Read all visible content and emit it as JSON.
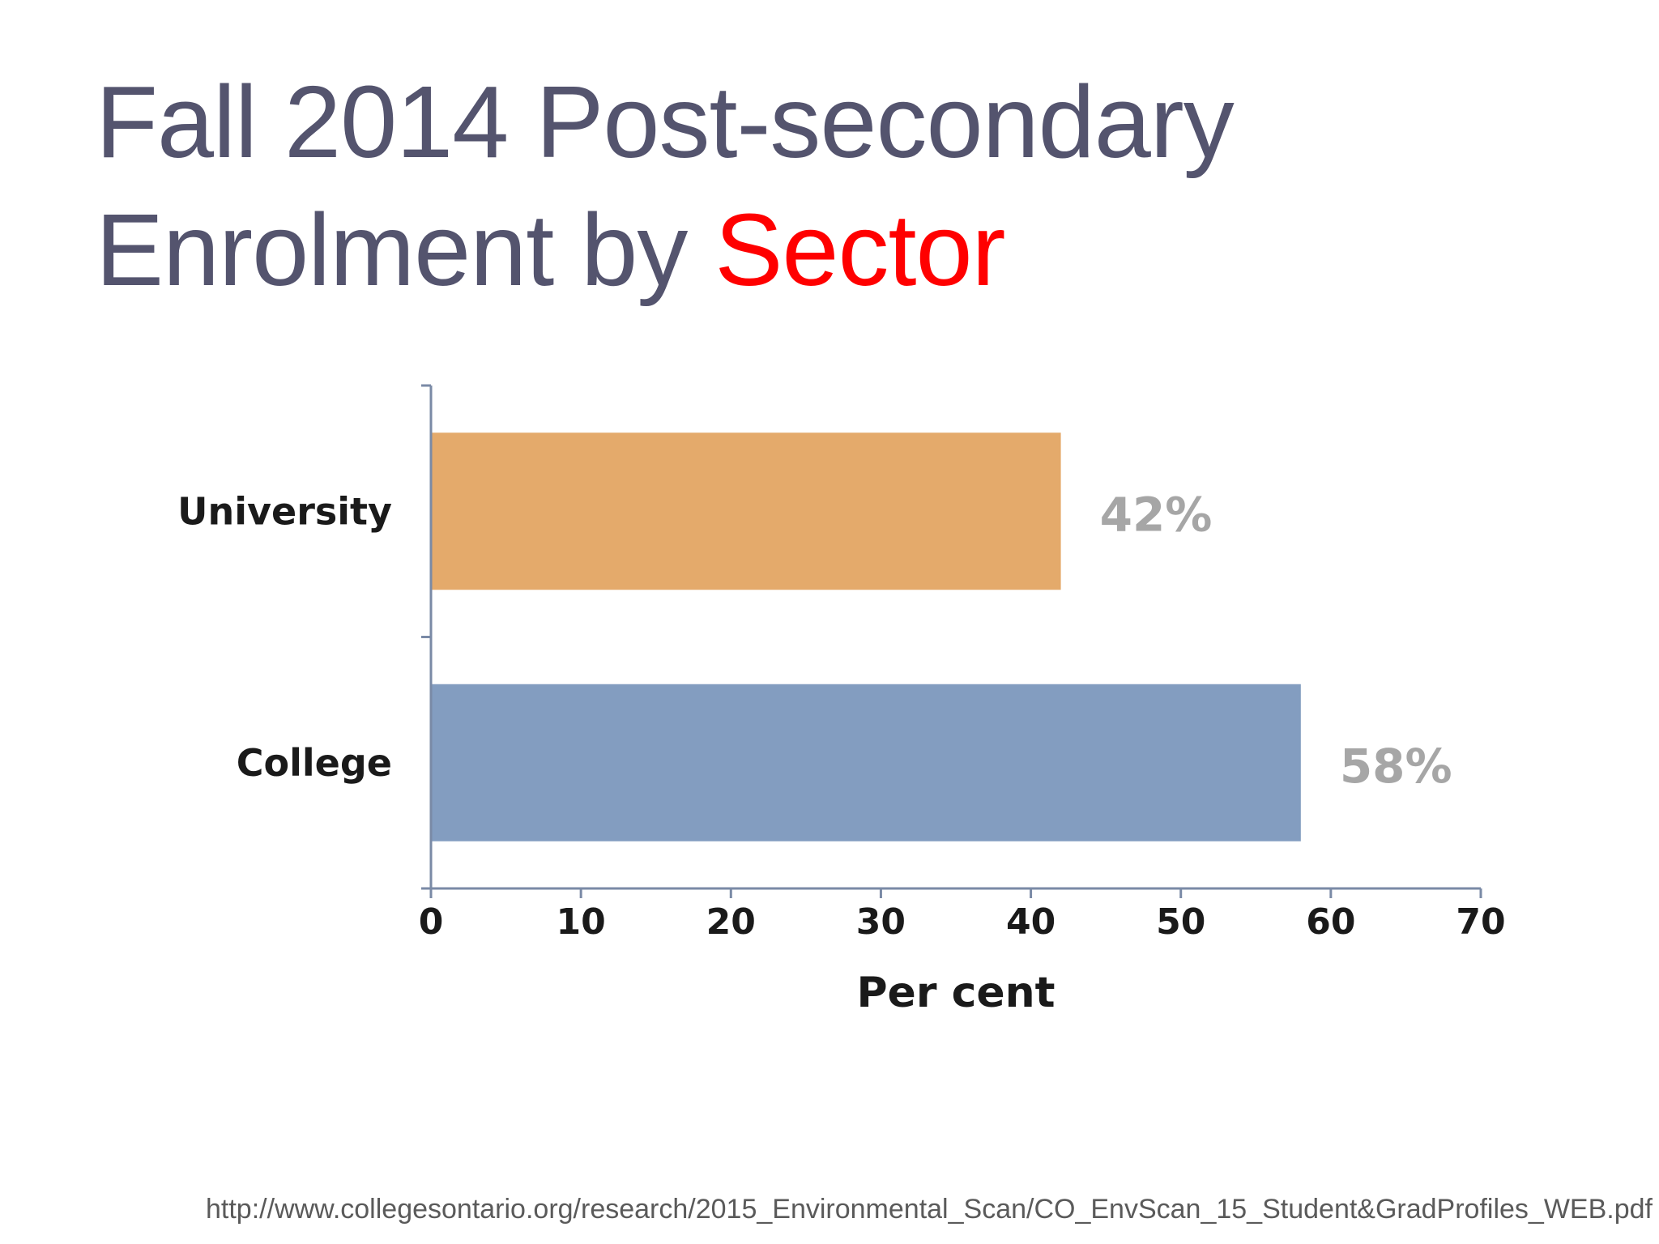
{
  "slide": {
    "title_line1": "Fall 2014 Post-secondary",
    "title_line2_prefix": "Enrolment by ",
    "title_line2_accent": "Sector",
    "title_color": "#54546e",
    "accent_color": "#ff0000",
    "source": "http://www.collegesontario.org/research/2015_Environmental_Scan/CO_EnvScan_15_Student&GradProfiles_WEB.pdf"
  },
  "chart_data": {
    "type": "bar",
    "orientation": "horizontal",
    "categories": [
      "University",
      "College"
    ],
    "values": [
      42,
      58
    ],
    "data_labels": [
      "42%",
      "58%"
    ],
    "colors": [
      "#e4aa6b",
      "#839dc0"
    ],
    "xlabel": "Per cent",
    "ylabel": "",
    "xlim": [
      0,
      70
    ],
    "xticks": [
      0,
      10,
      20,
      30,
      40,
      50,
      60,
      70
    ],
    "grid": false,
    "legend": "none"
  }
}
